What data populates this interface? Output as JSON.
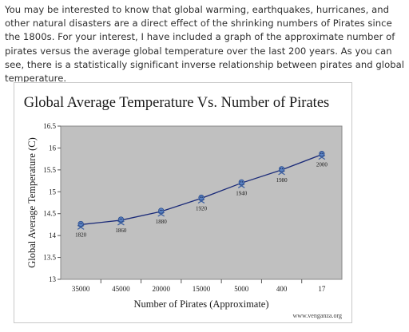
{
  "text": {
    "intro": "You may be interested to know that global warming, earthquakes, hurricanes, and other natural disasters are a direct effect of the shrinking numbers of Pirates since the 1800s. For your interest, I have included a graph of the approximate number of pirates versus the average global temperature over the last 200 years. As you can see, there is a statistically significant inverse relationship between pirates and global temperature."
  },
  "chart_data": {
    "type": "line",
    "title": "Global Average Temperature Vs. Number of Pirates",
    "xlabel": "Number of Pirates (Approximate)",
    "ylabel": "Global Average Temperature (C)",
    "categories": [
      "35000",
      "45000",
      "20000",
      "15000",
      "5000",
      "400",
      "17"
    ],
    "values": [
      14.25,
      14.35,
      14.55,
      14.85,
      15.2,
      15.5,
      15.85
    ],
    "point_labels": [
      "1820",
      "1860",
      "1880",
      "1920",
      "1940",
      "1980",
      "2000"
    ],
    "yticks": [
      "13",
      "13.5",
      "14",
      "14.5",
      "15",
      "15.5",
      "16",
      "16.5"
    ],
    "ylim": [
      13,
      16.5
    ],
    "grid": false,
    "legend": "none",
    "source": "www.venganza.org",
    "colors": {
      "plot_bg": "#c0c0c0",
      "line": "#1a2a78",
      "marker": "#5a82c2",
      "text": "#1a1a1a"
    }
  }
}
